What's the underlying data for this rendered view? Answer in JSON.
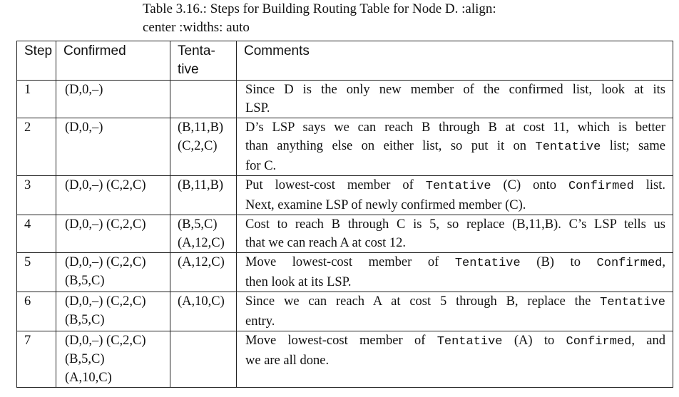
{
  "caption": {
    "line1": "Table 3.16.: Steps for Building Routing Table for Node D. :align:",
    "line2": "center :widths: auto"
  },
  "headers": {
    "step": "Step",
    "confirmed": "Confirmed",
    "tentative_1": "Tenta-",
    "tentative_2": "tive",
    "comments": "Comments"
  },
  "rows": [
    {
      "step": "1",
      "confirmed": [
        "(D,0,–)"
      ],
      "tentative": [],
      "comments": [
        [
          {
            "t": "Since D is the only new member of the confirmed list, look at its"
          }
        ],
        [
          {
            "t": "LSP."
          }
        ]
      ]
    },
    {
      "step": "2",
      "confirmed": [
        "(D,0,–)"
      ],
      "tentative": [
        "(B,11,B)",
        "(C,2,C)"
      ],
      "comments": [
        [
          {
            "t": "D’s LSP says we can reach B through B at cost 11, which is better"
          }
        ],
        [
          {
            "t": "than anything else on either list, so put it on "
          },
          {
            "t": "Tentative",
            "m": true
          },
          {
            "t": " list; same"
          }
        ],
        [
          {
            "t": "for C."
          }
        ]
      ]
    },
    {
      "step": "3",
      "confirmed": [
        "(D,0,–) (C,2,C)"
      ],
      "tentative": [
        "(B,11,B)"
      ],
      "comments": [
        [
          {
            "t": "Put lowest-cost member of "
          },
          {
            "t": "Tentative",
            "m": true
          },
          {
            "t": " (C) onto "
          },
          {
            "t": "Confirmed",
            "m": true
          },
          {
            "t": " list."
          }
        ],
        [
          {
            "t": "Next, examine LSP of newly confirmed member (C)."
          }
        ]
      ]
    },
    {
      "step": "4",
      "confirmed": [
        "(D,0,–) (C,2,C)"
      ],
      "tentative": [
        "(B,5,C)",
        "(A,12,C)"
      ],
      "comments": [
        [
          {
            "t": "Cost to reach B through C is 5, so replace (B,11,B). C’s LSP tells us"
          }
        ],
        [
          {
            "t": "that we can reach A at cost 12."
          }
        ]
      ]
    },
    {
      "step": "5",
      "confirmed": [
        "(D,0,–) (C,2,C)",
        "(B,5,C)"
      ],
      "tentative": [
        "(A,12,C)"
      ],
      "comments": [
        [
          {
            "t": "Move lowest-cost member of "
          },
          {
            "t": "Tentative",
            "m": true
          },
          {
            "t": " (B) to "
          },
          {
            "t": "Confirmed",
            "m": true
          },
          {
            "t": ","
          }
        ],
        [
          {
            "t": "then look at its LSP."
          }
        ]
      ]
    },
    {
      "step": "6",
      "confirmed": [
        "(D,0,–) (C,2,C)",
        "(B,5,C)"
      ],
      "tentative": [
        "(A,10,C)"
      ],
      "comments": [
        [
          {
            "t": "Since we can reach A at cost 5 through B, replace the "
          },
          {
            "t": "Tentative",
            "m": true
          }
        ],
        [
          {
            "t": "entry."
          }
        ]
      ]
    },
    {
      "step": "7",
      "confirmed": [
        "(D,0,–) (C,2,C)",
        "(B,5,C)",
        "(A,10,C)"
      ],
      "tentative": [],
      "comments": [
        [
          {
            "t": "Move lowest-cost member of "
          },
          {
            "t": "Tentative",
            "m": true
          },
          {
            "t": " (A) to "
          },
          {
            "t": "Confirmed",
            "m": true
          },
          {
            "t": ", and"
          }
        ],
        [
          {
            "t": "we are all done."
          }
        ]
      ]
    }
  ]
}
